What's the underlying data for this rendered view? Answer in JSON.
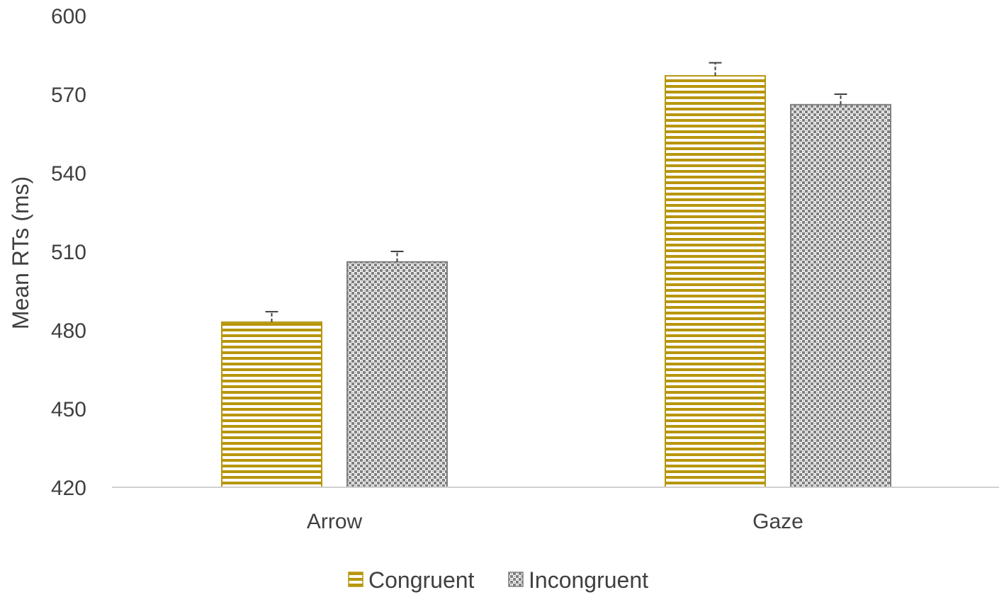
{
  "chart_data": {
    "type": "bar",
    "title": "",
    "xlabel": "",
    "ylabel": "Mean RTs (ms)",
    "ylim": [
      420,
      600
    ],
    "yticks": [
      420,
      450,
      480,
      510,
      540,
      570,
      600
    ],
    "categories": [
      "Arrow",
      "Gaze"
    ],
    "series": [
      {
        "name": "Congruent",
        "values": [
          483,
          577
        ],
        "error": [
          4,
          5
        ],
        "color": "#B8960C",
        "pattern": "horizontal-stripes"
      },
      {
        "name": "Incongruent",
        "values": [
          506,
          566
        ],
        "error": [
          4,
          4
        ],
        "color": "#7F7F7F",
        "pattern": "checkerboard"
      }
    ],
    "grid": false,
    "legend": "bottom"
  }
}
